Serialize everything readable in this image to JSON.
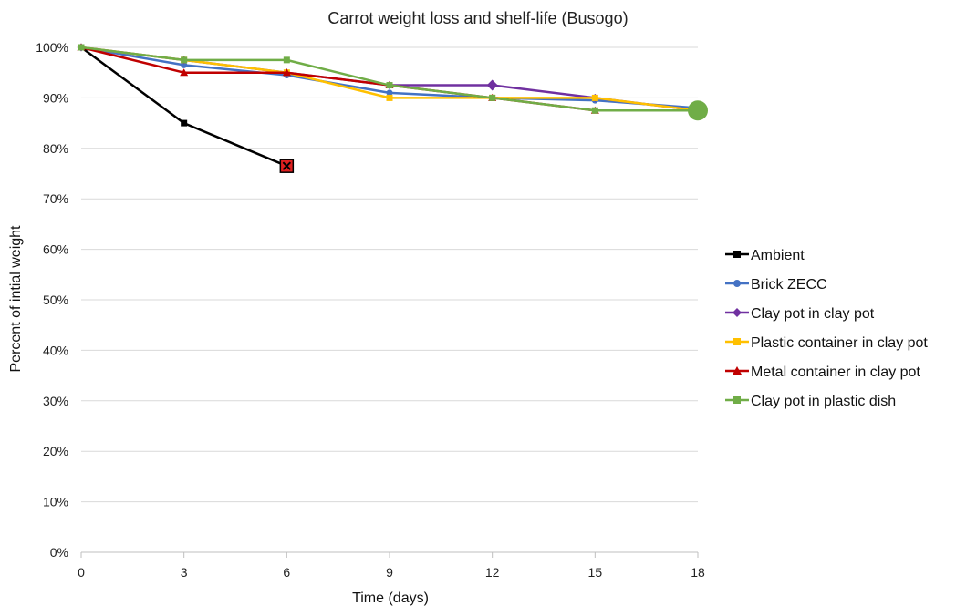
{
  "chart_data": {
    "type": "line",
    "title": "Carrot weight loss and shelf-life (Busogo)",
    "xlabel": "Time (days)",
    "ylabel": "Percent of intial weight",
    "x_ticks": [
      0,
      3,
      6,
      9,
      12,
      15,
      18
    ],
    "y_ticks": [
      0,
      10,
      20,
      30,
      40,
      50,
      60,
      70,
      80,
      90,
      100
    ],
    "y_tick_labels": [
      "0%",
      "10%",
      "20%",
      "30%",
      "40%",
      "50%",
      "60%",
      "70%",
      "80%",
      "90%",
      "100%"
    ],
    "xlim": [
      0,
      18
    ],
    "ylim": [
      0,
      100
    ],
    "grid": "horizontal",
    "legend_position": "right",
    "series": [
      {
        "name": "Ambient",
        "color": "#000000",
        "marker": "square",
        "x": [
          0,
          3,
          6
        ],
        "y": [
          100,
          85,
          76.5
        ],
        "end_marker": "red-x-box"
      },
      {
        "name": "Brick ZECC",
        "color": "#4472c4",
        "marker": "circle",
        "x": [
          0,
          3,
          6,
          9,
          12,
          15,
          18
        ],
        "y": [
          100,
          96.5,
          94.5,
          91,
          90,
          89.5,
          88
        ]
      },
      {
        "name": "Clay pot in clay pot",
        "color": "#7030a0",
        "marker": "diamond",
        "x": [
          0,
          3,
          6,
          9,
          12,
          15,
          18
        ],
        "y": [
          100,
          97.5,
          95,
          92.5,
          92.5,
          90,
          87.5
        ]
      },
      {
        "name": "Plastic container in clay pot",
        "color": "#ffc000",
        "marker": "square",
        "x": [
          0,
          3,
          6,
          9,
          12,
          15,
          18
        ],
        "y": [
          100,
          97.5,
          95,
          90,
          90,
          90,
          87.5
        ]
      },
      {
        "name": "Metal container in clay pot",
        "color": "#c00000",
        "marker": "triangle",
        "x": [
          0,
          3,
          6,
          9,
          12,
          15,
          18
        ],
        "y": [
          100,
          95,
          95,
          92.5,
          90,
          87.5,
          87.5
        ]
      },
      {
        "name": "Clay pot in plastic dish",
        "color": "#70ad47",
        "marker": "square",
        "x": [
          0,
          3,
          6,
          9,
          12,
          15,
          18
        ],
        "y": [
          100,
          97.5,
          97.5,
          92.5,
          90,
          87.5,
          87.5
        ],
        "end_marker": "big-circle"
      }
    ]
  }
}
